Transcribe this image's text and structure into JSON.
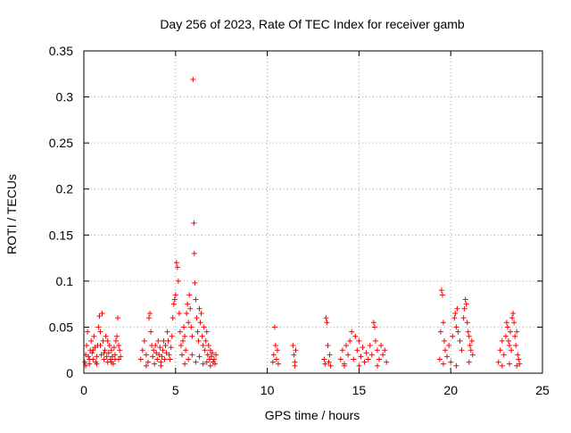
{
  "chart_data": {
    "type": "scatter",
    "title": "Day 256 of 2023, Rate Of TEC Index for receiver gamb",
    "xlabel": "GPS time / hours",
    "ylabel": "ROTI / TECUs",
    "xlim": [
      0,
      25
    ],
    "ylim": [
      0,
      0.35
    ],
    "x_ticks": [
      0,
      5,
      10,
      15,
      20,
      25
    ],
    "x_tick_labels": [
      "0",
      "5",
      "10",
      "15",
      "20",
      "25"
    ],
    "y_ticks": [
      0,
      0.05,
      0.1,
      0.15,
      0.2,
      0.25,
      0.3,
      0.35
    ],
    "y_tick_labels": [
      "0",
      "0.05",
      "0.1",
      "0.15",
      "0.2",
      "0.25",
      "0.3",
      "0.35"
    ],
    "grid": true,
    "marker": "+",
    "color": "#ff0000",
    "series": [
      {
        "name": "ROTI",
        "points": [
          [
            0.05,
            0.012
          ],
          [
            0.1,
            0.02
          ],
          [
            0.15,
            0.03
          ],
          [
            0.2,
            0.045
          ],
          [
            0.25,
            0.018
          ],
          [
            0.3,
            0.01
          ],
          [
            0.35,
            0.025
          ],
          [
            0.4,
            0.035
          ],
          [
            0.45,
            0.022
          ],
          [
            0.5,
            0.015
          ],
          [
            0.55,
            0.04
          ],
          [
            0.6,
            0.028
          ],
          [
            0.65,
            0.012
          ],
          [
            0.7,
            0.018
          ],
          [
            0.75,
            0.03
          ],
          [
            0.8,
            0.05
          ],
          [
            0.85,
            0.062
          ],
          [
            0.9,
            0.045
          ],
          [
            0.95,
            0.02
          ],
          [
            1.0,
            0.065
          ],
          [
            1.05,
            0.035
          ],
          [
            1.1,
            0.015
          ],
          [
            1.15,
            0.025
          ],
          [
            1.2,
            0.04
          ],
          [
            1.25,
            0.018
          ],
          [
            1.3,
            0.012
          ],
          [
            1.35,
            0.022
          ],
          [
            1.4,
            0.03
          ],
          [
            1.45,
            0.015
          ],
          [
            1.5,
            0.025
          ],
          [
            1.55,
            0.018
          ],
          [
            1.6,
            0.01
          ],
          [
            1.65,
            0.028
          ],
          [
            1.7,
            0.02
          ],
          [
            1.75,
            0.035
          ],
          [
            1.8,
            0.04
          ],
          [
            1.85,
            0.06
          ],
          [
            1.9,
            0.015
          ],
          [
            1.95,
            0.025
          ],
          [
            2.0,
            0.018
          ],
          [
            0.1,
            0.008
          ],
          [
            0.3,
            0.015
          ],
          [
            0.5,
            0.025
          ],
          [
            0.7,
            0.01
          ],
          [
            0.9,
            0.03
          ],
          [
            1.1,
            0.022
          ],
          [
            1.3,
            0.035
          ],
          [
            1.5,
            0.012
          ],
          [
            1.7,
            0.015
          ],
          [
            1.9,
            0.03
          ],
          [
            3.1,
            0.015
          ],
          [
            3.2,
            0.025
          ],
          [
            3.3,
            0.035
          ],
          [
            3.4,
            0.02
          ],
          [
            3.5,
            0.012
          ],
          [
            3.55,
            0.06
          ],
          [
            3.6,
            0.065
          ],
          [
            3.65,
            0.045
          ],
          [
            3.7,
            0.03
          ],
          [
            3.75,
            0.018
          ],
          [
            3.8,
            0.025
          ],
          [
            3.85,
            0.01
          ],
          [
            3.9,
            0.03
          ],
          [
            3.95,
            0.022
          ],
          [
            4.0,
            0.015
          ],
          [
            4.05,
            0.035
          ],
          [
            4.1,
            0.02
          ],
          [
            4.15,
            0.028
          ],
          [
            4.2,
            0.012
          ],
          [
            4.25,
            0.018
          ],
          [
            4.3,
            0.025
          ],
          [
            4.35,
            0.035
          ],
          [
            4.4,
            0.015
          ],
          [
            4.45,
            0.03
          ],
          [
            4.5,
            0.022
          ],
          [
            4.55,
            0.045
          ],
          [
            4.6,
            0.035
          ],
          [
            4.65,
            0.02
          ],
          [
            4.7,
            0.015
          ],
          [
            4.75,
            0.028
          ],
          [
            4.8,
            0.04
          ],
          [
            4.85,
            0.06
          ],
          [
            4.9,
            0.075
          ],
          [
            4.95,
            0.08
          ],
          [
            5.0,
            0.085
          ],
          [
            5.05,
            0.12
          ],
          [
            5.1,
            0.115
          ],
          [
            5.15,
            0.1
          ],
          [
            5.2,
            0.065
          ],
          [
            5.25,
            0.045
          ],
          [
            5.3,
            0.03
          ],
          [
            5.35,
            0.02
          ],
          [
            5.4,
            0.035
          ],
          [
            5.45,
            0.05
          ],
          [
            5.5,
            0.04
          ],
          [
            5.55,
            0.025
          ],
          [
            5.6,
            0.065
          ],
          [
            5.65,
            0.075
          ],
          [
            5.7,
            0.055
          ],
          [
            5.75,
            0.085
          ],
          [
            5.8,
            0.07
          ],
          [
            5.85,
            0.05
          ],
          [
            5.9,
            0.04
          ],
          [
            5.95,
            0.319
          ],
          [
            6.0,
            0.163
          ],
          [
            6.02,
            0.13
          ],
          [
            6.05,
            0.098
          ],
          [
            6.1,
            0.08
          ],
          [
            6.15,
            0.06
          ],
          [
            6.2,
            0.045
          ],
          [
            6.25,
            0.035
          ],
          [
            6.3,
            0.07
          ],
          [
            6.35,
            0.055
          ],
          [
            6.4,
            0.065
          ],
          [
            6.45,
            0.04
          ],
          [
            6.5,
            0.03
          ],
          [
            6.55,
            0.05
          ],
          [
            6.6,
            0.025
          ],
          [
            6.65,
            0.035
          ],
          [
            6.7,
            0.045
          ],
          [
            6.75,
            0.02
          ],
          [
            6.8,
            0.03
          ],
          [
            6.85,
            0.015
          ],
          [
            6.9,
            0.025
          ],
          [
            6.95,
            0.018
          ],
          [
            7.0,
            0.022
          ],
          [
            7.05,
            0.012
          ],
          [
            7.1,
            0.015
          ],
          [
            7.15,
            0.01
          ],
          [
            7.2,
            0.02
          ],
          [
            5.5,
            0.01
          ],
          [
            5.7,
            0.015
          ],
          [
            5.9,
            0.02
          ],
          [
            6.1,
            0.012
          ],
          [
            6.3,
            0.018
          ],
          [
            6.5,
            0.01
          ],
          [
            6.7,
            0.012
          ],
          [
            6.9,
            0.008
          ],
          [
            4.2,
            0.008
          ],
          [
            3.4,
            0.008
          ],
          [
            10.3,
            0.012
          ],
          [
            10.35,
            0.02
          ],
          [
            10.4,
            0.05
          ],
          [
            10.45,
            0.03
          ],
          [
            10.5,
            0.015
          ],
          [
            10.55,
            0.025
          ],
          [
            10.6,
            0.01
          ],
          [
            11.4,
            0.03
          ],
          [
            11.45,
            0.02
          ],
          [
            11.5,
            0.012
          ],
          [
            11.55,
            0.025
          ],
          [
            11.5,
            0.008
          ],
          [
            13.1,
            0.015
          ],
          [
            13.15,
            0.01
          ],
          [
            13.2,
            0.06
          ],
          [
            13.25,
            0.055
          ],
          [
            13.3,
            0.03
          ],
          [
            13.35,
            0.012
          ],
          [
            13.4,
            0.02
          ],
          [
            13.45,
            0.008
          ],
          [
            14.0,
            0.015
          ],
          [
            14.1,
            0.025
          ],
          [
            14.2,
            0.01
          ],
          [
            14.3,
            0.03
          ],
          [
            14.4,
            0.02
          ],
          [
            14.5,
            0.035
          ],
          [
            14.6,
            0.045
          ],
          [
            14.7,
            0.015
          ],
          [
            14.8,
            0.04
          ],
          [
            14.9,
            0.025
          ],
          [
            15.0,
            0.035
          ],
          [
            15.1,
            0.018
          ],
          [
            15.2,
            0.028
          ],
          [
            15.3,
            0.012
          ],
          [
            15.4,
            0.022
          ],
          [
            15.5,
            0.015
          ],
          [
            15.6,
            0.03
          ],
          [
            15.7,
            0.02
          ],
          [
            15.8,
            0.055
          ],
          [
            15.85,
            0.05
          ],
          [
            15.9,
            0.035
          ],
          [
            16.0,
            0.025
          ],
          [
            16.1,
            0.015
          ],
          [
            16.2,
            0.03
          ],
          [
            16.3,
            0.02
          ],
          [
            16.4,
            0.025
          ],
          [
            16.5,
            0.012
          ],
          [
            14.2,
            0.008
          ],
          [
            15.0,
            0.008
          ],
          [
            16.0,
            0.008
          ],
          [
            19.4,
            0.015
          ],
          [
            19.45,
            0.045
          ],
          [
            19.5,
            0.09
          ],
          [
            19.55,
            0.085
          ],
          [
            19.6,
            0.055
          ],
          [
            19.65,
            0.035
          ],
          [
            19.7,
            0.025
          ],
          [
            19.8,
            0.018
          ],
          [
            19.9,
            0.03
          ],
          [
            20.0,
            0.012
          ],
          [
            20.1,
            0.04
          ],
          [
            20.2,
            0.06
          ],
          [
            20.25,
            0.065
          ],
          [
            20.3,
            0.05
          ],
          [
            20.35,
            0.07
          ],
          [
            20.4,
            0.045
          ],
          [
            20.5,
            0.035
          ],
          [
            20.6,
            0.025
          ],
          [
            20.7,
            0.06
          ],
          [
            20.75,
            0.07
          ],
          [
            20.8,
            0.08
          ],
          [
            20.85,
            0.075
          ],
          [
            20.9,
            0.055
          ],
          [
            20.95,
            0.045
          ],
          [
            21.0,
            0.04
          ],
          [
            21.05,
            0.03
          ],
          [
            21.1,
            0.025
          ],
          [
            21.15,
            0.035
          ],
          [
            21.2,
            0.02
          ],
          [
            19.6,
            0.01
          ],
          [
            20.3,
            0.008
          ],
          [
            21.0,
            0.012
          ],
          [
            22.6,
            0.012
          ],
          [
            22.7,
            0.025
          ],
          [
            22.8,
            0.035
          ],
          [
            22.9,
            0.02
          ],
          [
            23.0,
            0.04
          ],
          [
            23.05,
            0.055
          ],
          [
            23.1,
            0.05
          ],
          [
            23.15,
            0.035
          ],
          [
            23.2,
            0.03
          ],
          [
            23.25,
            0.045
          ],
          [
            23.3,
            0.025
          ],
          [
            23.35,
            0.06
          ],
          [
            23.4,
            0.065
          ],
          [
            23.45,
            0.055
          ],
          [
            23.5,
            0.04
          ],
          [
            23.55,
            0.03
          ],
          [
            23.6,
            0.045
          ],
          [
            23.65,
            0.02
          ],
          [
            23.7,
            0.015
          ],
          [
            23.75,
            0.01
          ],
          [
            22.8,
            0.008
          ],
          [
            23.2,
            0.01
          ],
          [
            23.6,
            0.008
          ]
        ]
      }
    ]
  }
}
